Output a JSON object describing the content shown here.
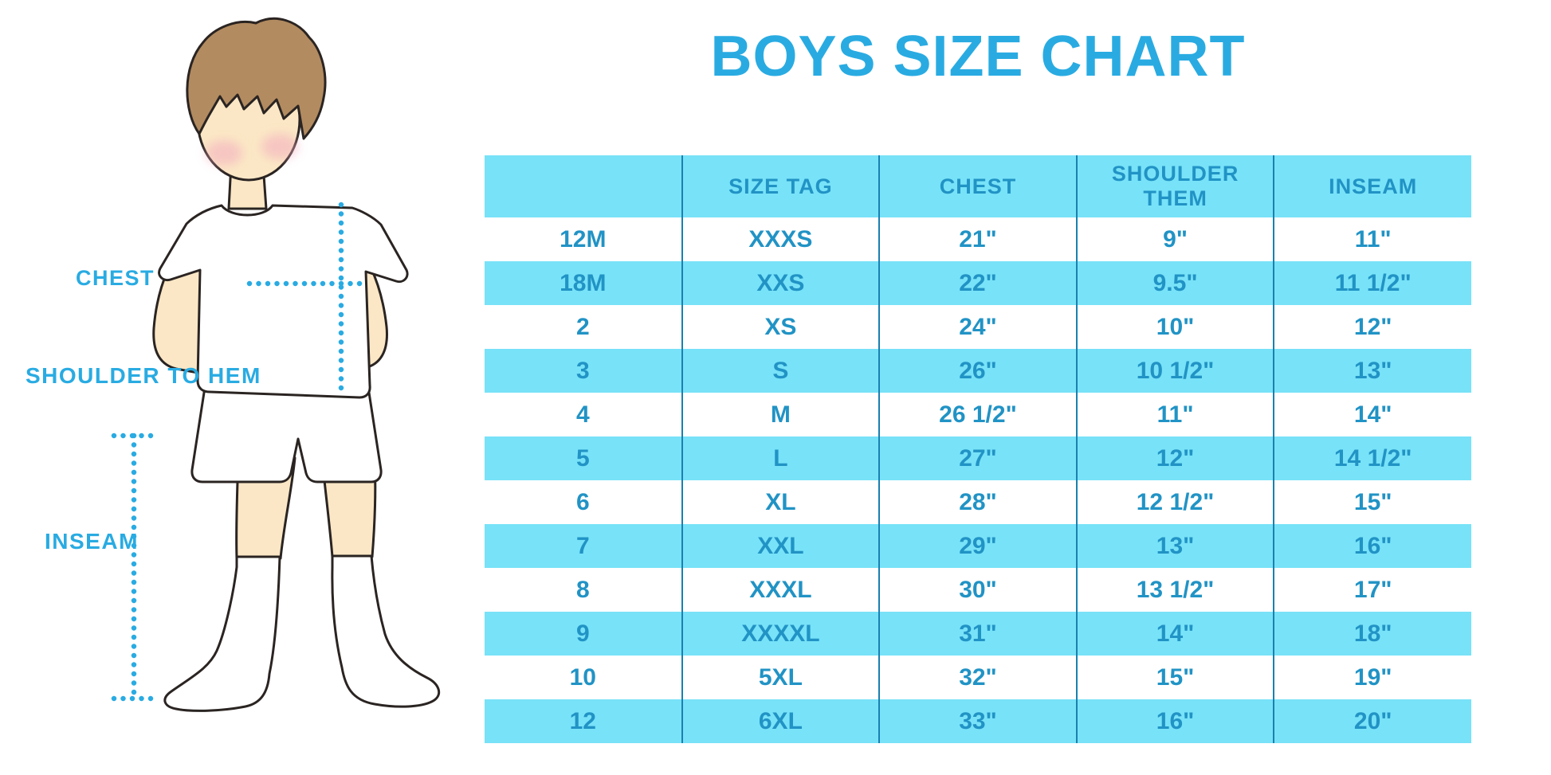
{
  "title": "BOYS SIZE CHART",
  "figure": {
    "labels": {
      "chest": "CHEST",
      "shoulder_to_hem": "SHOULDER TO HEM",
      "inseam": "INSEAM"
    }
  },
  "colors": {
    "accent": "#29ABE2",
    "band": "#78E2F8",
    "table_text": "#2193C5",
    "divider": "#1A80B0",
    "skin": "#FBE7C5",
    "hair": "#B28B60",
    "cheek": "#F3ACBF",
    "outline": "#2A2422"
  },
  "table": {
    "columns": [
      "",
      "SIZE TAG",
      "CHEST",
      "SHOULDER THEM",
      "INSEAM"
    ],
    "rows": [
      [
        "12M",
        "XXXS",
        "21\"",
        "9\"",
        "11\""
      ],
      [
        "18M",
        "XXS",
        "22\"",
        "9.5\"",
        "11 1/2\""
      ],
      [
        "2",
        "XS",
        "24\"",
        "10\"",
        "12\""
      ],
      [
        "3",
        "S",
        "26\"",
        "10 1/2\"",
        "13\""
      ],
      [
        "4",
        "M",
        "26 1/2\"",
        "11\"",
        "14\""
      ],
      [
        "5",
        "L",
        "27\"",
        "12\"",
        "14 1/2\""
      ],
      [
        "6",
        "XL",
        "28\"",
        "12 1/2\"",
        "15\""
      ],
      [
        "7",
        "XXL",
        "29\"",
        "13\"",
        "16\""
      ],
      [
        "8",
        "XXXL",
        "30\"",
        "13 1/2\"",
        "17\""
      ],
      [
        "9",
        "XXXXL",
        "31\"",
        "14\"",
        "18\""
      ],
      [
        "10",
        "5XL",
        "32\"",
        "15\"",
        "19\""
      ],
      [
        "12",
        "6XL",
        "33\"",
        "16\"",
        "20\""
      ]
    ]
  },
  "chart_data": {
    "type": "table",
    "title": "BOYS SIZE CHART",
    "columns": [
      "",
      "SIZE TAG",
      "CHEST",
      "SHOULDER THEM",
      "INSEAM"
    ],
    "rows": [
      [
        "12M",
        "XXXS",
        "21\"",
        "9\"",
        "11\""
      ],
      [
        "18M",
        "XXS",
        "22\"",
        "9.5\"",
        "11 1/2\""
      ],
      [
        "2",
        "XS",
        "24\"",
        "10\"",
        "12\""
      ],
      [
        "3",
        "S",
        "26\"",
        "10 1/2\"",
        "13\""
      ],
      [
        "4",
        "M",
        "26 1/2\"",
        "11\"",
        "14\""
      ],
      [
        "5",
        "L",
        "27\"",
        "12\"",
        "14 1/2\""
      ],
      [
        "6",
        "XL",
        "28\"",
        "12 1/2\"",
        "15\""
      ],
      [
        "7",
        "XXL",
        "29\"",
        "13\"",
        "16\""
      ],
      [
        "8",
        "XXXL",
        "30\"",
        "13 1/2\"",
        "17\""
      ],
      [
        "9",
        "XXXXL",
        "31\"",
        "14\"",
        "18\""
      ],
      [
        "10",
        "5XL",
        "32\"",
        "15\"",
        "19\""
      ],
      [
        "12",
        "6XL",
        "33\"",
        "16\"",
        "20\""
      ]
    ],
    "row_striping": [
      "white",
      "cyan-band"
    ],
    "legend_position": "none",
    "grid": "vertical-dividers-only"
  }
}
